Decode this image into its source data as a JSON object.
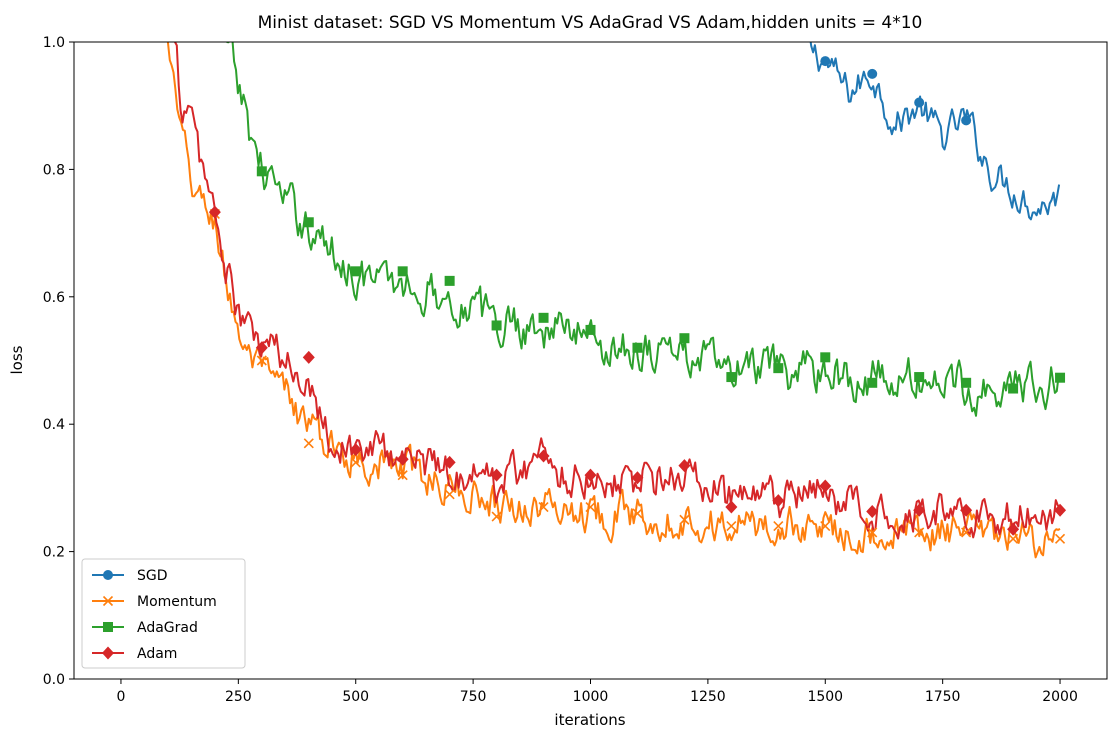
{
  "chart_data": {
    "type": "line",
    "title": "Minist dataset: SGD VS Momentum VS AdaGrad VS Adam,hidden units = 4*10",
    "xlabel": "iterations",
    "ylabel": "loss",
    "xlim": [
      -100,
      2100
    ],
    "ylim": [
      0.0,
      1.0
    ],
    "xticks": [
      0,
      250,
      500,
      750,
      1000,
      1250,
      1500,
      1750,
      2000
    ],
    "xtick_labels": [
      "0",
      "250",
      "500",
      "750",
      "1000",
      "1250",
      "1500",
      "1750",
      "2000"
    ],
    "yticks": [
      0.0,
      0.2,
      0.4,
      0.6,
      0.8,
      1.0
    ],
    "ytick_labels": [
      "0.0",
      "0.2",
      "0.4",
      "0.6",
      "0.8",
      "1.0"
    ],
    "grid": false,
    "legend_position": "lower-left",
    "series": [
      {
        "name": "SGD",
        "color": "#1f77b4",
        "marker": "circle",
        "x": [
          1450,
          1500,
          1550,
          1600,
          1650,
          1700,
          1750,
          1800,
          1850,
          1900,
          1950,
          2000
        ],
        "y": [
          1.0,
          0.97,
          0.92,
          0.95,
          0.87,
          0.9,
          0.85,
          0.88,
          0.8,
          0.77,
          0.74,
          0.76
        ],
        "marker_x": [
          1500,
          1600,
          1700,
          1800
        ],
        "marker_y": [
          0.97,
          0.95,
          0.905,
          0.877
        ]
      },
      {
        "name": "Momentum",
        "color": "#ff7f0e",
        "marker": "x",
        "x": [
          100,
          125,
          150,
          175,
          200,
          225,
          250,
          275,
          300,
          325,
          350,
          375,
          400,
          450,
          500,
          550,
          600,
          650,
          700,
          750,
          800,
          850,
          900,
          950,
          1000,
          1100,
          1200,
          1300,
          1400,
          1500,
          1600,
          1700,
          1800,
          1900,
          2000
        ],
        "y": [
          1.0,
          0.86,
          0.78,
          0.74,
          0.72,
          0.62,
          0.55,
          0.5,
          0.48,
          0.46,
          0.45,
          0.42,
          0.4,
          0.36,
          0.35,
          0.34,
          0.33,
          0.32,
          0.3,
          0.29,
          0.28,
          0.27,
          0.27,
          0.27,
          0.26,
          0.26,
          0.25,
          0.24,
          0.24,
          0.24,
          0.23,
          0.23,
          0.23,
          0.22,
          0.22
        ],
        "marker_x": [
          200,
          300,
          400,
          500,
          600,
          700,
          800,
          900,
          1000,
          1100,
          1200,
          1300,
          1400,
          1500,
          1600,
          1700,
          1800,
          1900,
          2000
        ],
        "marker_y": [
          0.73,
          0.5,
          0.37,
          0.34,
          0.32,
          0.29,
          0.255,
          0.27,
          0.27,
          0.26,
          0.25,
          0.24,
          0.24,
          0.24,
          0.23,
          0.23,
          0.23,
          0.22,
          0.22
        ]
      },
      {
        "name": "AdaGrad",
        "color": "#2ca02c",
        "marker": "square",
        "x": [
          225,
          250,
          275,
          300,
          325,
          350,
          375,
          400,
          450,
          500,
          550,
          600,
          650,
          700,
          750,
          800,
          850,
          900,
          950,
          1000,
          1050,
          1100,
          1150,
          1200,
          1250,
          1300,
          1350,
          1400,
          1450,
          1500,
          1550,
          1600,
          1650,
          1700,
          1750,
          1800,
          1850,
          1900,
          1950,
          2000
        ],
        "y": [
          1.0,
          0.93,
          0.86,
          0.8,
          0.78,
          0.74,
          0.73,
          0.71,
          0.67,
          0.64,
          0.62,
          0.62,
          0.61,
          0.6,
          0.58,
          0.56,
          0.56,
          0.55,
          0.55,
          0.54,
          0.52,
          0.52,
          0.52,
          0.51,
          0.5,
          0.48,
          0.49,
          0.48,
          0.48,
          0.49,
          0.47,
          0.47,
          0.47,
          0.47,
          0.47,
          0.46,
          0.46,
          0.46,
          0.46,
          0.47
        ],
        "marker_x": [
          300,
          400,
          500,
          600,
          700,
          800,
          900,
          1000,
          1100,
          1200,
          1300,
          1400,
          1500,
          1600,
          1700,
          1800,
          1900,
          2000
        ],
        "marker_y": [
          0.797,
          0.717,
          0.64,
          0.64,
          0.625,
          0.555,
          0.567,
          0.548,
          0.52,
          0.535,
          0.474,
          0.488,
          0.505,
          0.465,
          0.474,
          0.465,
          0.456,
          0.473
        ]
      },
      {
        "name": "Adam",
        "color": "#d62728",
        "marker": "diamond",
        "x": [
          115,
          125,
          150,
          175,
          200,
          225,
          250,
          275,
          300,
          325,
          350,
          375,
          400,
          450,
          500,
          550,
          600,
          650,
          700,
          750,
          800,
          850,
          900,
          950,
          1000,
          1100,
          1200,
          1300,
          1400,
          1500,
          1600,
          1700,
          1800,
          1900,
          2000
        ],
        "y": [
          1.0,
          0.92,
          0.87,
          0.8,
          0.73,
          0.64,
          0.57,
          0.54,
          0.52,
          0.52,
          0.49,
          0.48,
          0.48,
          0.37,
          0.36,
          0.36,
          0.35,
          0.34,
          0.33,
          0.32,
          0.31,
          0.33,
          0.35,
          0.32,
          0.32,
          0.31,
          0.32,
          0.28,
          0.28,
          0.29,
          0.26,
          0.27,
          0.26,
          0.25,
          0.27
        ],
        "marker_x": [
          200,
          300,
          400,
          500,
          600,
          700,
          800,
          900,
          1000,
          1100,
          1200,
          1300,
          1400,
          1500,
          1600,
          1700,
          1800,
          1900,
          2000
        ],
        "marker_y": [
          0.733,
          0.52,
          0.505,
          0.36,
          0.345,
          0.34,
          0.32,
          0.35,
          0.32,
          0.316,
          0.335,
          0.27,
          0.28,
          0.303,
          0.263,
          0.265,
          0.265,
          0.235,
          0.265
        ]
      }
    ]
  }
}
